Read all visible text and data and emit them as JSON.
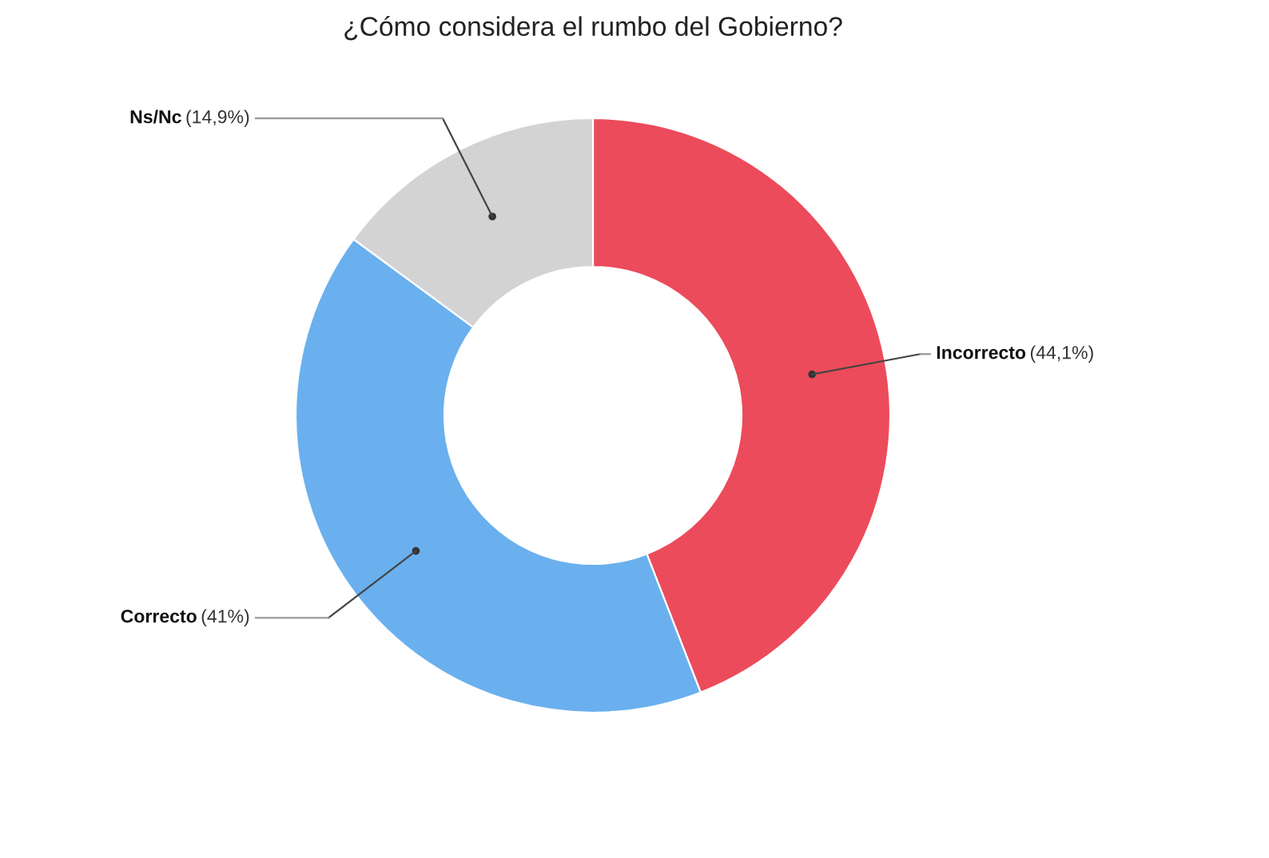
{
  "chart_data": {
    "type": "donut",
    "title": "¿Cómo considera el rumbo del Gobierno?",
    "categories": [
      "Incorrecto",
      "Correcto",
      "Ns/Nc"
    ],
    "values": [
      44.1,
      41,
      14.9
    ],
    "colors": [
      "#ec4b5b",
      "#6ab0ee",
      "#d3d3d3"
    ],
    "value_labels": [
      "(44,1%)",
      "(41%)",
      "(14,9%)"
    ]
  }
}
